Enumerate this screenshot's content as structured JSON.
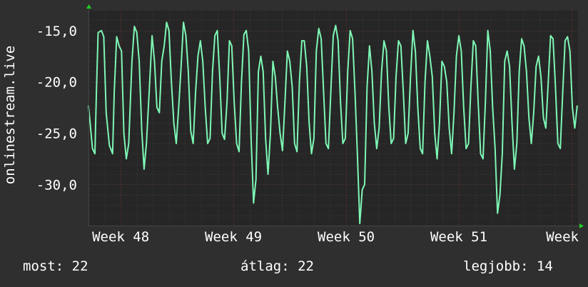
{
  "chart_data": {
    "type": "line",
    "ylabel": "onlinestream.live",
    "ylim": [
      -34,
      -13
    ],
    "yticks": [
      {
        "value": -15,
        "label": "-15,0"
      },
      {
        "value": -20,
        "label": "-20,0"
      },
      {
        "value": -25,
        "label": "-25,0"
      },
      {
        "value": -30,
        "label": "-30,0"
      }
    ],
    "xticks": [
      {
        "day": 2,
        "label": "Week 48"
      },
      {
        "day": 9,
        "label": "Week 49"
      },
      {
        "day": 16,
        "label": "Week 50"
      },
      {
        "day": 23,
        "label": "Week 51"
      },
      {
        "day": 30,
        "label": "Week"
      }
    ],
    "xlim_days": [
      0,
      30.4
    ],
    "grid": true,
    "series": [
      {
        "color": "#7ef7b4",
        "points": [
          [
            0.0,
            -22.3
          ],
          [
            0.25,
            -26.5
          ],
          [
            0.4,
            -27.0
          ],
          [
            0.5,
            -20.5
          ],
          [
            0.6,
            -15.2
          ],
          [
            0.8,
            -15.0
          ],
          [
            0.95,
            -15.6
          ],
          [
            1.1,
            -23.0
          ],
          [
            1.3,
            -26.2
          ],
          [
            1.5,
            -27.0
          ],
          [
            1.6,
            -21.0
          ],
          [
            1.75,
            -15.6
          ],
          [
            1.9,
            -16.5
          ],
          [
            2.05,
            -17.0
          ],
          [
            2.2,
            -25.0
          ],
          [
            2.35,
            -27.5
          ],
          [
            2.5,
            -26.0
          ],
          [
            2.7,
            -18.0
          ],
          [
            2.85,
            -14.6
          ],
          [
            3.0,
            -15.2
          ],
          [
            3.15,
            -18.0
          ],
          [
            3.3,
            -24.5
          ],
          [
            3.45,
            -28.5
          ],
          [
            3.6,
            -26.0
          ],
          [
            3.8,
            -20.0
          ],
          [
            3.95,
            -15.5
          ],
          [
            4.1,
            -18.0
          ],
          [
            4.25,
            -22.5
          ],
          [
            4.4,
            -23.0
          ],
          [
            4.55,
            -18.0
          ],
          [
            4.7,
            -16.5
          ],
          [
            4.85,
            -14.2
          ],
          [
            5.0,
            -15.0
          ],
          [
            5.15,
            -20.0
          ],
          [
            5.3,
            -24.0
          ],
          [
            5.45,
            -26.0
          ],
          [
            5.6,
            -22.5
          ],
          [
            5.75,
            -18.5
          ],
          [
            5.9,
            -14.2
          ],
          [
            6.05,
            -15.5
          ],
          [
            6.2,
            -19.0
          ],
          [
            6.35,
            -24.8
          ],
          [
            6.5,
            -26.0
          ],
          [
            6.65,
            -21.0
          ],
          [
            6.8,
            -17.5
          ],
          [
            6.95,
            -16.0
          ],
          [
            7.1,
            -18.0
          ],
          [
            7.25,
            -22.5
          ],
          [
            7.4,
            -26.0
          ],
          [
            7.55,
            -25.5
          ],
          [
            7.7,
            -19.0
          ],
          [
            7.85,
            -15.5
          ],
          [
            8.0,
            -15.0
          ],
          [
            8.15,
            -19.5
          ],
          [
            8.3,
            -25.0
          ],
          [
            8.45,
            -25.6
          ],
          [
            8.6,
            -22.0
          ],
          [
            8.75,
            -16.0
          ],
          [
            8.9,
            -16.5
          ],
          [
            9.05,
            -22.0
          ],
          [
            9.2,
            -26.0
          ],
          [
            9.35,
            -26.8
          ],
          [
            9.5,
            -20.0
          ],
          [
            9.65,
            -15.4
          ],
          [
            9.8,
            -15.0
          ],
          [
            9.95,
            -17.0
          ],
          [
            10.1,
            -25.5
          ],
          [
            10.25,
            -31.8
          ],
          [
            10.4,
            -29.5
          ],
          [
            10.55,
            -19.0
          ],
          [
            10.7,
            -17.5
          ],
          [
            10.85,
            -19.0
          ],
          [
            11.0,
            -25.5
          ],
          [
            11.15,
            -29.0
          ],
          [
            11.3,
            -25.0
          ],
          [
            11.45,
            -18.0
          ],
          [
            11.6,
            -19.5
          ],
          [
            11.75,
            -22.5
          ],
          [
            11.9,
            -25.0
          ],
          [
            12.05,
            -26.7
          ],
          [
            12.2,
            -22.0
          ],
          [
            12.35,
            -17.0
          ],
          [
            12.5,
            -18.0
          ],
          [
            12.65,
            -20.5
          ],
          [
            12.8,
            -26.0
          ],
          [
            12.95,
            -26.8
          ],
          [
            13.1,
            -20.0
          ],
          [
            13.25,
            -16.0
          ],
          [
            13.4,
            -16.0
          ],
          [
            13.55,
            -18.5
          ],
          [
            13.7,
            -24.0
          ],
          [
            13.85,
            -27.0
          ],
          [
            14.0,
            -25.5
          ],
          [
            14.15,
            -17.0
          ],
          [
            14.3,
            -14.8
          ],
          [
            14.45,
            -15.8
          ],
          [
            14.6,
            -21.0
          ],
          [
            14.75,
            -26.0
          ],
          [
            14.9,
            -26.5
          ],
          [
            15.05,
            -21.0
          ],
          [
            15.2,
            -15.5
          ],
          [
            15.35,
            -14.5
          ],
          [
            15.5,
            -16.0
          ],
          [
            15.65,
            -22.0
          ],
          [
            15.8,
            -26.0
          ],
          [
            15.95,
            -25.5
          ],
          [
            16.1,
            -19.0
          ],
          [
            16.25,
            -15.0
          ],
          [
            16.4,
            -15.8
          ],
          [
            16.55,
            -21.0
          ],
          [
            16.7,
            -27.0
          ],
          [
            16.85,
            -33.8
          ],
          [
            17.0,
            -30.5
          ],
          [
            17.15,
            -30.0
          ],
          [
            17.3,
            -20.5
          ],
          [
            17.45,
            -16.5
          ],
          [
            17.6,
            -19.0
          ],
          [
            17.75,
            -24.0
          ],
          [
            17.9,
            -26.5
          ],
          [
            18.05,
            -24.5
          ],
          [
            18.2,
            -19.0
          ],
          [
            18.35,
            -16.0
          ],
          [
            18.5,
            -17.0
          ],
          [
            18.65,
            -22.5
          ],
          [
            18.8,
            -26.0
          ],
          [
            18.95,
            -25.5
          ],
          [
            19.1,
            -19.5
          ],
          [
            19.25,
            -16.0
          ],
          [
            19.4,
            -16.5
          ],
          [
            19.55,
            -21.0
          ],
          [
            19.7,
            -26.0
          ],
          [
            19.85,
            -25.0
          ],
          [
            20.0,
            -19.5
          ],
          [
            20.15,
            -15.0
          ],
          [
            20.3,
            -17.0
          ],
          [
            20.45,
            -22.5
          ],
          [
            20.6,
            -26.5
          ],
          [
            20.75,
            -27.0
          ],
          [
            20.9,
            -20.0
          ],
          [
            21.05,
            -16.0
          ],
          [
            21.2,
            -17.5
          ],
          [
            21.35,
            -19.5
          ],
          [
            21.5,
            -25.0
          ],
          [
            21.65,
            -27.5
          ],
          [
            21.8,
            -24.0
          ],
          [
            21.95,
            -18.0
          ],
          [
            22.1,
            -18.5
          ],
          [
            22.25,
            -20.0
          ],
          [
            22.4,
            -24.5
          ],
          [
            22.55,
            -27.0
          ],
          [
            22.7,
            -23.0
          ],
          [
            22.85,
            -17.5
          ],
          [
            23.0,
            -15.5
          ],
          [
            23.15,
            -17.0
          ],
          [
            23.3,
            -22.5
          ],
          [
            23.45,
            -26.5
          ],
          [
            23.6,
            -26.0
          ],
          [
            23.75,
            -20.5
          ],
          [
            23.9,
            -16.0
          ],
          [
            24.05,
            -16.5
          ],
          [
            24.2,
            -22.0
          ],
          [
            24.35,
            -27.0
          ],
          [
            24.5,
            -27.5
          ],
          [
            24.65,
            -22.0
          ],
          [
            24.8,
            -15.0
          ],
          [
            24.95,
            -17.0
          ],
          [
            25.1,
            -22.5
          ],
          [
            25.25,
            -26.5
          ],
          [
            25.4,
            -32.8
          ],
          [
            25.55,
            -31.0
          ],
          [
            25.7,
            -27.0
          ],
          [
            25.85,
            -18.0
          ],
          [
            26.0,
            -17.0
          ],
          [
            26.15,
            -18.5
          ],
          [
            26.3,
            -24.0
          ],
          [
            26.45,
            -28.5
          ],
          [
            26.6,
            -26.0
          ],
          [
            26.75,
            -19.0
          ],
          [
            26.9,
            -15.8
          ],
          [
            27.05,
            -16.5
          ],
          [
            27.2,
            -19.0
          ],
          [
            27.35,
            -23.5
          ],
          [
            27.5,
            -26.0
          ],
          [
            27.65,
            -23.0
          ],
          [
            27.8,
            -18.5
          ],
          [
            27.95,
            -17.5
          ],
          [
            28.1,
            -19.5
          ],
          [
            28.25,
            -23.5
          ],
          [
            28.4,
            -24.5
          ],
          [
            28.55,
            -20.0
          ],
          [
            28.7,
            -15.5
          ],
          [
            28.85,
            -15.8
          ],
          [
            29.0,
            -20.5
          ],
          [
            29.15,
            -26.0
          ],
          [
            29.3,
            -26.5
          ],
          [
            29.45,
            -21.0
          ],
          [
            29.6,
            -16.0
          ],
          [
            29.75,
            -15.6
          ],
          [
            29.9,
            -17.0
          ],
          [
            30.05,
            -22.5
          ],
          [
            30.2,
            -24.5
          ],
          [
            30.35,
            -22.3
          ]
        ]
      }
    ]
  },
  "stats": {
    "current": "most: 22",
    "average": "átlag: 22",
    "max": "legjobb: 14"
  },
  "colors": {
    "background": "#2f2f2f",
    "plot_background": "#262626",
    "line": "#7ef7b4",
    "minor_grid": "#3a3a3a",
    "major_grid_vertical": "#7a2e2e",
    "axis_arrow": "#22cc22"
  }
}
